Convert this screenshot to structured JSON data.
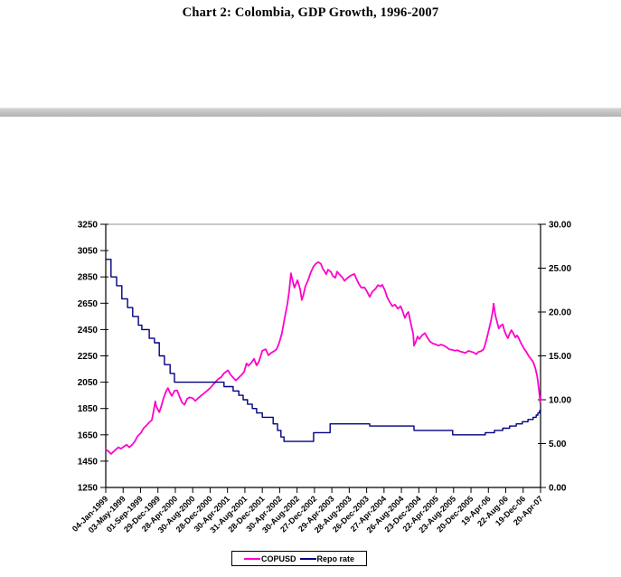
{
  "page": {
    "title": "Chart 2: Colombia, GDP Growth, 1996-2007"
  },
  "separator": {
    "color": "#bdbdbd"
  },
  "legend": {
    "items": [
      {
        "label": "COPUSD",
        "color": "#ff00cc"
      },
      {
        "label": "Repo rate",
        "color": "#000080"
      }
    ]
  },
  "chart_data": {
    "type": "line",
    "title": "Chart 2: Colombia, GDP Growth, 1996-2007",
    "grid": "top-line-only",
    "grid_color": "#909090",
    "legend_position": "bottom",
    "left_axis": {
      "min": 1250,
      "max": 3250,
      "step": 200,
      "tick_labels": [
        "3250",
        "3050",
        "2850",
        "2650",
        "2450",
        "2250",
        "2050",
        "1850",
        "1650",
        "1450",
        "1250"
      ]
    },
    "right_axis": {
      "min": 0,
      "max": 30,
      "step": 5,
      "tick_labels": [
        "30.00",
        "25.00",
        "20.00",
        "15.00",
        "10.00",
        "5.00",
        "0.00"
      ]
    },
    "x_tick_labels": [
      "04-Jan-1999",
      "03-May-1999",
      "01-Sep-1999",
      "29-Dec-1999",
      "28-Apr-2000",
      "30-Aug-2000",
      "28-Dec-2000",
      "30-Apr-2001",
      "31-Aug-2001",
      "28-Dec-2001",
      "30-Apr-2002",
      "30-Aug-2002",
      "27-Dec-2002",
      "29-Apr-2003",
      "28-Aug-2003",
      "26-Dec-2003",
      "27-Apr-2004",
      "26-Aug-2004",
      "23-Dec-2004",
      "22-Apr-2005",
      "23-Aug-2005",
      "20-Dec-2005",
      "19-Apr-06",
      "22-Aug-06",
      "19-Dec-06",
      "20-Apr-07"
    ],
    "series": [
      {
        "name": "COPUSD",
        "axis": "left",
        "color": "#ff00cc",
        "style": "line",
        "width": 1.8,
        "points": [
          [
            0.0,
            1540
          ],
          [
            0.006,
            1525
          ],
          [
            0.012,
            1505
          ],
          [
            0.021,
            1532
          ],
          [
            0.029,
            1555
          ],
          [
            0.035,
            1545
          ],
          [
            0.042,
            1562
          ],
          [
            0.048,
            1575
          ],
          [
            0.054,
            1555
          ],
          [
            0.06,
            1572
          ],
          [
            0.067,
            1600
          ],
          [
            0.073,
            1638
          ],
          [
            0.081,
            1665
          ],
          [
            0.087,
            1700
          ],
          [
            0.094,
            1722
          ],
          [
            0.1,
            1745
          ],
          [
            0.106,
            1762
          ],
          [
            0.11,
            1830
          ],
          [
            0.114,
            1905
          ],
          [
            0.116,
            1868
          ],
          [
            0.119,
            1848
          ],
          [
            0.123,
            1822
          ],
          [
            0.127,
            1860
          ],
          [
            0.133,
            1930
          ],
          [
            0.139,
            1983
          ],
          [
            0.143,
            2005
          ],
          [
            0.148,
            1968
          ],
          [
            0.152,
            1945
          ],
          [
            0.158,
            1985
          ],
          [
            0.164,
            1988
          ],
          [
            0.17,
            1938
          ],
          [
            0.175,
            1898
          ],
          [
            0.181,
            1878
          ],
          [
            0.187,
            1923
          ],
          [
            0.193,
            1935
          ],
          [
            0.2,
            1928
          ],
          [
            0.206,
            1908
          ],
          [
            0.212,
            1928
          ],
          [
            0.218,
            1945
          ],
          [
            0.225,
            1963
          ],
          [
            0.233,
            1985
          ],
          [
            0.241,
            2008
          ],
          [
            0.249,
            2040
          ],
          [
            0.258,
            2072
          ],
          [
            0.266,
            2090
          ],
          [
            0.272,
            2118
          ],
          [
            0.281,
            2140
          ],
          [
            0.287,
            2108
          ],
          [
            0.293,
            2085
          ],
          [
            0.299,
            2063
          ],
          [
            0.306,
            2085
          ],
          [
            0.312,
            2105
          ],
          [
            0.318,
            2128
          ],
          [
            0.324,
            2193
          ],
          [
            0.328,
            2175
          ],
          [
            0.335,
            2198
          ],
          [
            0.341,
            2228
          ],
          [
            0.347,
            2178
          ],
          [
            0.353,
            2213
          ],
          [
            0.36,
            2290
          ],
          [
            0.368,
            2300
          ],
          [
            0.374,
            2255
          ],
          [
            0.38,
            2272
          ],
          [
            0.387,
            2285
          ],
          [
            0.393,
            2300
          ],
          [
            0.399,
            2350
          ],
          [
            0.405,
            2420
          ],
          [
            0.412,
            2548
          ],
          [
            0.418,
            2650
          ],
          [
            0.422,
            2748
          ],
          [
            0.426,
            2878
          ],
          [
            0.43,
            2818
          ],
          [
            0.434,
            2768
          ],
          [
            0.441,
            2825
          ],
          [
            0.447,
            2758
          ],
          [
            0.451,
            2675
          ],
          [
            0.455,
            2720
          ],
          [
            0.459,
            2778
          ],
          [
            0.466,
            2830
          ],
          [
            0.472,
            2888
          ],
          [
            0.478,
            2930
          ],
          [
            0.484,
            2953
          ],
          [
            0.489,
            2963
          ],
          [
            0.495,
            2948
          ],
          [
            0.499,
            2913
          ],
          [
            0.503,
            2893
          ],
          [
            0.507,
            2870
          ],
          [
            0.511,
            2905
          ],
          [
            0.518,
            2888
          ],
          [
            0.522,
            2858
          ],
          [
            0.528,
            2843
          ],
          [
            0.532,
            2890
          ],
          [
            0.538,
            2868
          ],
          [
            0.545,
            2843
          ],
          [
            0.549,
            2820
          ],
          [
            0.555,
            2840
          ],
          [
            0.561,
            2855
          ],
          [
            0.568,
            2868
          ],
          [
            0.572,
            2872
          ],
          [
            0.576,
            2838
          ],
          [
            0.582,
            2798
          ],
          [
            0.588,
            2768
          ],
          [
            0.595,
            2770
          ],
          [
            0.601,
            2738
          ],
          [
            0.607,
            2698
          ],
          [
            0.613,
            2738
          ],
          [
            0.62,
            2758
          ],
          [
            0.626,
            2788
          ],
          [
            0.632,
            2778
          ],
          [
            0.636,
            2790
          ],
          [
            0.642,
            2748
          ],
          [
            0.647,
            2698
          ],
          [
            0.653,
            2660
          ],
          [
            0.659,
            2628
          ],
          [
            0.665,
            2640
          ],
          [
            0.672,
            2608
          ],
          [
            0.678,
            2628
          ],
          [
            0.682,
            2598
          ],
          [
            0.688,
            2538
          ],
          [
            0.692,
            2568
          ],
          [
            0.696,
            2583
          ],
          [
            0.703,
            2478
          ],
          [
            0.707,
            2418
          ],
          [
            0.709,
            2328
          ],
          [
            0.713,
            2358
          ],
          [
            0.717,
            2398
          ],
          [
            0.721,
            2378
          ],
          [
            0.728,
            2408
          ],
          [
            0.734,
            2423
          ],
          [
            0.74,
            2388
          ],
          [
            0.746,
            2358
          ],
          [
            0.753,
            2343
          ],
          [
            0.759,
            2338
          ],
          [
            0.765,
            2328
          ],
          [
            0.771,
            2336
          ],
          [
            0.778,
            2328
          ],
          [
            0.784,
            2315
          ],
          [
            0.79,
            2300
          ],
          [
            0.796,
            2297
          ],
          [
            0.803,
            2290
          ],
          [
            0.809,
            2293
          ],
          [
            0.815,
            2284
          ],
          [
            0.821,
            2278
          ],
          [
            0.827,
            2273
          ],
          [
            0.834,
            2288
          ],
          [
            0.84,
            2282
          ],
          [
            0.846,
            2276
          ],
          [
            0.852,
            2263
          ],
          [
            0.857,
            2280
          ],
          [
            0.863,
            2285
          ],
          [
            0.869,
            2300
          ],
          [
            0.873,
            2340
          ],
          [
            0.877,
            2390
          ],
          [
            0.881,
            2448
          ],
          [
            0.886,
            2518
          ],
          [
            0.89,
            2590
          ],
          [
            0.892,
            2648
          ],
          [
            0.896,
            2558
          ],
          [
            0.9,
            2508
          ],
          [
            0.904,
            2458
          ],
          [
            0.908,
            2478
          ],
          [
            0.913,
            2490
          ],
          [
            0.917,
            2440
          ],
          [
            0.921,
            2408
          ],
          [
            0.925,
            2385
          ],
          [
            0.929,
            2420
          ],
          [
            0.933,
            2445
          ],
          [
            0.938,
            2418
          ],
          [
            0.942,
            2390
          ],
          [
            0.946,
            2405
          ],
          [
            0.95,
            2383
          ],
          [
            0.954,
            2353
          ],
          [
            0.958,
            2330
          ],
          [
            0.963,
            2300
          ],
          [
            0.967,
            2283
          ],
          [
            0.971,
            2258
          ],
          [
            0.975,
            2238
          ],
          [
            0.979,
            2222
          ],
          [
            0.983,
            2203
          ],
          [
            0.988,
            2158
          ],
          [
            0.99,
            2128
          ],
          [
            0.992,
            2098
          ],
          [
            0.994,
            2055
          ],
          [
            0.996,
            1998
          ],
          [
            0.998,
            1942
          ],
          [
            0.999,
            1898
          ],
          [
            1.0,
            1938
          ]
        ]
      },
      {
        "name": "Repo rate",
        "axis": "right",
        "color": "#000080",
        "style": "step",
        "width": 1.4,
        "points": [
          [
            0.0,
            26
          ],
          [
            0.012,
            24
          ],
          [
            0.025,
            23
          ],
          [
            0.037,
            21.5
          ],
          [
            0.05,
            20.5
          ],
          [
            0.062,
            19.5
          ],
          [
            0.075,
            18.5
          ],
          [
            0.083,
            18
          ],
          [
            0.1,
            17
          ],
          [
            0.112,
            16.5
          ],
          [
            0.123,
            15
          ],
          [
            0.135,
            14
          ],
          [
            0.148,
            13
          ],
          [
            0.158,
            12
          ],
          [
            0.272,
            11.5
          ],
          [
            0.293,
            11
          ],
          [
            0.306,
            10.5
          ],
          [
            0.316,
            10
          ],
          [
            0.326,
            9.5
          ],
          [
            0.337,
            9
          ],
          [
            0.347,
            8.5
          ],
          [
            0.36,
            8
          ],
          [
            0.385,
            7.25
          ],
          [
            0.395,
            6.5
          ],
          [
            0.403,
            5.75
          ],
          [
            0.41,
            5.25
          ],
          [
            0.478,
            6.25
          ],
          [
            0.516,
            7.25
          ],
          [
            0.607,
            7
          ],
          [
            0.709,
            6.5
          ],
          [
            0.798,
            6
          ],
          [
            0.873,
            6.25
          ],
          [
            0.894,
            6.5
          ],
          [
            0.913,
            6.75
          ],
          [
            0.929,
            7
          ],
          [
            0.944,
            7.25
          ],
          [
            0.958,
            7.5
          ],
          [
            0.971,
            7.75
          ],
          [
            0.983,
            8
          ],
          [
            0.99,
            8.25
          ],
          [
            0.994,
            8.5
          ],
          [
            0.998,
            8.75
          ],
          [
            1.0,
            8.8
          ]
        ]
      }
    ]
  }
}
